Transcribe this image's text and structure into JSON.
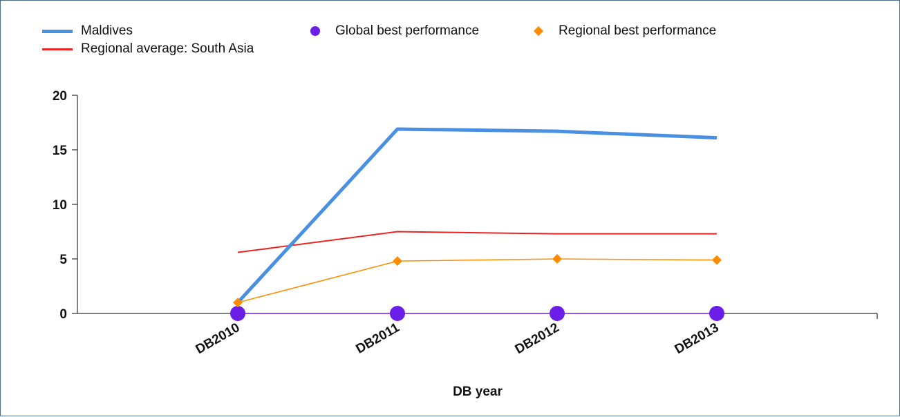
{
  "chart_data": {
    "type": "line",
    "title": "",
    "xlabel": "DB year",
    "ylabel": "",
    "categories": [
      "DB2010",
      "DB2011",
      "DB2012",
      "DB2013"
    ],
    "ylim": [
      0,
      20
    ],
    "yticks": [
      0,
      5,
      10,
      15,
      20
    ],
    "grid": false,
    "legend_position": "top",
    "series": [
      {
        "name": "Maldives",
        "values": [
          1,
          16.9,
          16.7,
          16.1
        ],
        "color": "#4a90e2",
        "style": "line"
      },
      {
        "name": "Regional average: South Asia",
        "values": [
          5.6,
          7.5,
          7.3,
          7.3
        ],
        "color": "#ee2222",
        "style": "line"
      },
      {
        "name": "Global best performance",
        "values": [
          0,
          0,
          0,
          0
        ],
        "color": "#6b1ee8",
        "style": "marker-circle"
      },
      {
        "name": "Regional best performance",
        "values": [
          1,
          4.8,
          5,
          4.9
        ],
        "color": "#ff8c00",
        "style": "line-diamond"
      }
    ]
  }
}
